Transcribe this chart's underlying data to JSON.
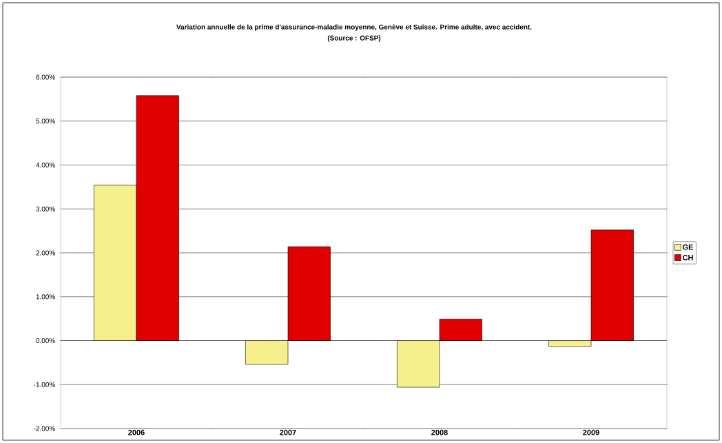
{
  "chart_data": {
    "type": "bar",
    "title": "Variation annuelle de la prime d'assurance-maladie moyenne, Genève et Suisse. Prime adulte, avec accident.",
    "annotations": [
      "(Source : OFSP)"
    ],
    "categories": [
      "2006",
      "2007",
      "2008",
      "2009"
    ],
    "series": [
      {
        "name": "GE",
        "color": "#f5f08c",
        "values": [
          3.54,
          -0.54,
          -1.06,
          -0.13
        ]
      },
      {
        "name": "CH",
        "color": "#e00000",
        "values": [
          5.58,
          2.14,
          0.49,
          2.52
        ]
      }
    ],
    "ylim": [
      -2,
      6
    ],
    "yticks": [
      {
        "value": -2,
        "label": "-2.00%"
      },
      {
        "value": -1,
        "label": "-1.00%"
      },
      {
        "value": 0,
        "label": "0.00%"
      },
      {
        "value": 1,
        "label": "1.00%"
      },
      {
        "value": 2,
        "label": "2.00%"
      },
      {
        "value": 3,
        "label": "3.00%"
      },
      {
        "value": 4,
        "label": "4.00%"
      },
      {
        "value": 5,
        "label": "5.00%"
      },
      {
        "value": 6,
        "label": "6.00%"
      }
    ],
    "grid": "y",
    "legend": "right"
  }
}
